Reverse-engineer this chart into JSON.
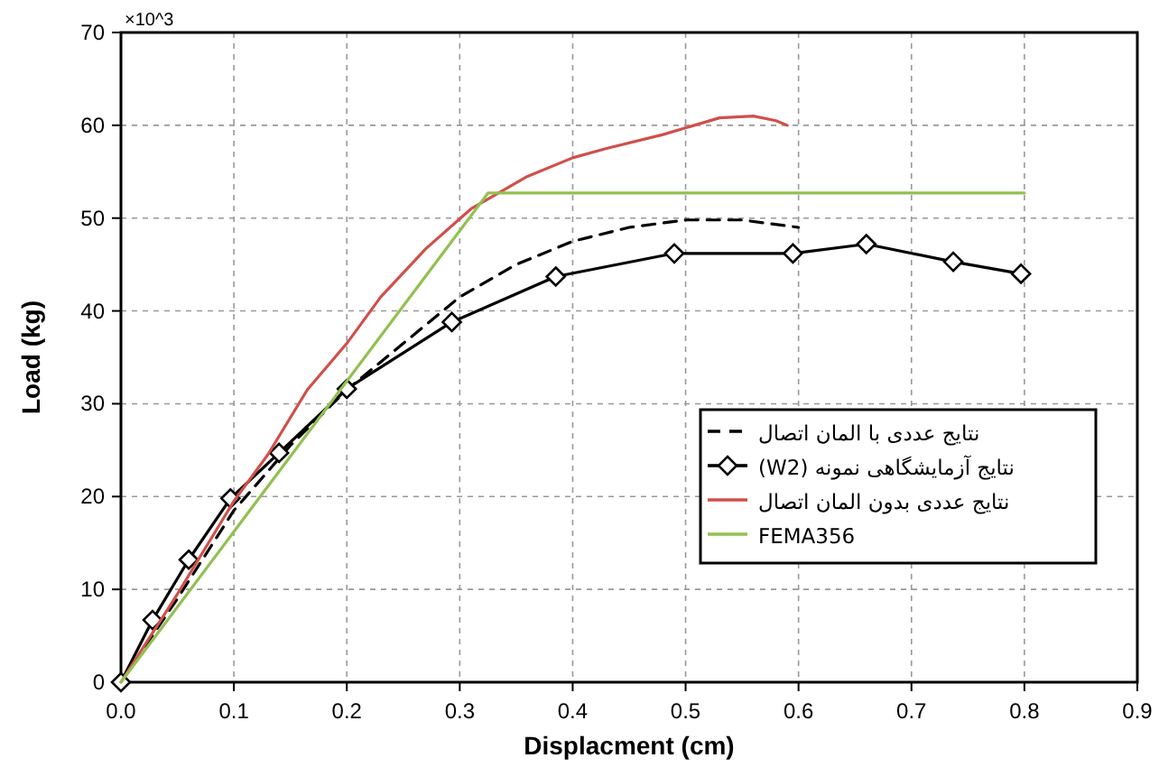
{
  "chart_data": {
    "type": "line",
    "xlabel": "Displacment (cm)",
    "ylabel": "Load (kg)",
    "annotations": [
      "×10^3"
    ],
    "xlim": [
      0,
      0.9
    ],
    "ylim": [
      0,
      70
    ],
    "xticks": [
      {
        "value": 0,
        "label": "0.0"
      },
      0.1,
      0.2,
      0.3,
      0.4,
      0.5,
      0.6,
      0.7,
      0.8,
      0.9
    ],
    "yticks": [
      0,
      10,
      20,
      30,
      40,
      50,
      60,
      70
    ],
    "grid": true,
    "legend": "bottom right",
    "series": [
      {
        "name": "نتایج عددی با المان اتصال",
        "color": "#000000",
        "line_style": "dashed",
        "marker": "none",
        "x": [
          0,
          0.05,
          0.1,
          0.15,
          0.2,
          0.25,
          0.3,
          0.35,
          0.4,
          0.45,
          0.5,
          0.55,
          0.6
        ],
        "values": [
          0,
          9,
          18.5,
          25.5,
          31.5,
          36.5,
          41.5,
          45,
          47.5,
          49,
          49.8,
          49.8,
          49
        ]
      },
      {
        "name": "نتایج آزمایشگاهی نمونه (W2)",
        "color": "#000000",
        "line_style": "solid",
        "marker": "diamond",
        "x": [
          0,
          0.028,
          0.06,
          0.097,
          0.14,
          0.2,
          0.293,
          0.385,
          0.49,
          0.595,
          0.66,
          0.737,
          0.797
        ],
        "values": [
          0,
          6.7,
          13.2,
          19.8,
          24.7,
          31.6,
          38.8,
          43.7,
          46.2,
          46.2,
          47.2,
          45.3,
          44
        ]
      },
      {
        "name": "نتایج عددی بدون المان اتصال",
        "color": "#d0504a",
        "line_style": "solid",
        "marker": "none",
        "x": [
          0,
          0.05,
          0.1,
          0.13,
          0.165,
          0.2,
          0.23,
          0.27,
          0.31,
          0.36,
          0.4,
          0.43,
          0.48,
          0.53,
          0.56,
          0.58,
          0.59
        ],
        "values": [
          0,
          9.5,
          19.5,
          24.5,
          31.5,
          36.5,
          41.5,
          46.7,
          51,
          54.5,
          56.5,
          57.5,
          59,
          60.8,
          61,
          60.5,
          60
        ]
      },
      {
        "name": "FEMA356",
        "color": "#92c051",
        "line_style": "solid",
        "marker": "none",
        "x": [
          0,
          0.325,
          0.8
        ],
        "values": [
          0,
          52.7,
          52.7
        ]
      }
    ]
  }
}
